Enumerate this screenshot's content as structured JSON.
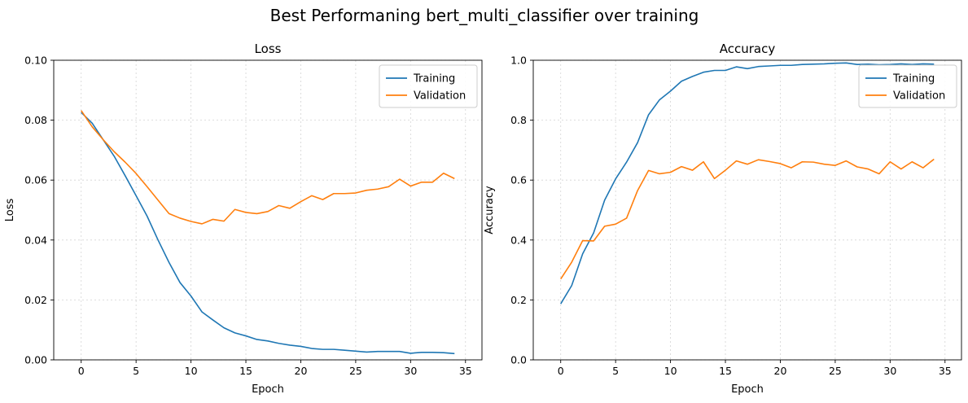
{
  "figure": {
    "suptitle": "Best Performaning bert_multi_classifier over training"
  },
  "chart_data": [
    {
      "type": "line",
      "title": "Loss",
      "xlabel": "Epoch",
      "ylabel": "Loss",
      "xlim": [
        -2.5,
        36.5
      ],
      "ylim": [
        0.0,
        0.1
      ],
      "xticks": [
        0,
        5,
        10,
        15,
        20,
        25,
        30,
        35
      ],
      "yticks": [
        0.0,
        0.02,
        0.04,
        0.06,
        0.08,
        0.1
      ],
      "yticklabels": [
        "0.00",
        "0.02",
        "0.04",
        "0.06",
        "0.08",
        "0.10"
      ],
      "grid": true,
      "legend": "top-right",
      "x": [
        0,
        1,
        2,
        3,
        4,
        5,
        6,
        7,
        8,
        9,
        10,
        11,
        12,
        13,
        14,
        15,
        16,
        17,
        18,
        19,
        20,
        21,
        22,
        23,
        24,
        25,
        26,
        27,
        28,
        29,
        30,
        31,
        32,
        33,
        34
      ],
      "series": [
        {
          "name": "Training",
          "color": "#1f77b4",
          "values": [
            0.0826,
            0.079,
            0.0735,
            0.068,
            0.0615,
            0.0548,
            0.048,
            0.04,
            0.0325,
            0.0258,
            0.0213,
            0.016,
            0.0133,
            0.0107,
            0.009,
            0.008,
            0.0068,
            0.0063,
            0.0055,
            0.0049,
            0.0045,
            0.0038,
            0.0035,
            0.0035,
            0.0032,
            0.0029,
            0.0026,
            0.0028,
            0.0028,
            0.0028,
            0.0022,
            0.0025,
            0.0025,
            0.0024,
            0.0021
          ]
        },
        {
          "name": "Validation",
          "color": "#ff7f0e",
          "values": [
            0.0832,
            0.0778,
            0.0735,
            0.0695,
            0.066,
            0.0622,
            0.0578,
            0.0533,
            0.0488,
            0.0473,
            0.0462,
            0.0454,
            0.0469,
            0.0463,
            0.0502,
            0.0492,
            0.0488,
            0.0495,
            0.0515,
            0.0506,
            0.0528,
            0.0548,
            0.0535,
            0.0555,
            0.0555,
            0.0557,
            0.0566,
            0.057,
            0.0578,
            0.0603,
            0.058,
            0.0593,
            0.0593,
            0.0623,
            0.0605
          ]
        }
      ]
    },
    {
      "type": "line",
      "title": "Accuracy",
      "xlabel": "Epoch",
      "ylabel": "Accuracy",
      "xlim": [
        -2.5,
        36.5
      ],
      "ylim": [
        0.0,
        1.0
      ],
      "xticks": [
        0,
        5,
        10,
        15,
        20,
        25,
        30,
        35
      ],
      "yticks": [
        0.0,
        0.2,
        0.4,
        0.6,
        0.8,
        1.0
      ],
      "yticklabels": [
        "0.0",
        "0.2",
        "0.4",
        "0.6",
        "0.8",
        "1.0"
      ],
      "grid": true,
      "legend": "top-right",
      "x": [
        0,
        1,
        2,
        3,
        4,
        5,
        6,
        7,
        8,
        9,
        10,
        11,
        12,
        13,
        14,
        15,
        16,
        17,
        18,
        19,
        20,
        21,
        22,
        23,
        24,
        25,
        26,
        27,
        28,
        29,
        30,
        31,
        32,
        33,
        34
      ],
      "series": [
        {
          "name": "Training",
          "color": "#1f77b4",
          "values": [
            0.187,
            0.248,
            0.354,
            0.424,
            0.533,
            0.604,
            0.66,
            0.725,
            0.818,
            0.868,
            0.897,
            0.93,
            0.946,
            0.96,
            0.966,
            0.966,
            0.978,
            0.972,
            0.979,
            0.981,
            0.983,
            0.983,
            0.986,
            0.987,
            0.988,
            0.99,
            0.991,
            0.986,
            0.987,
            0.985,
            0.986,
            0.988,
            0.986,
            0.988,
            0.987
          ]
        },
        {
          "name": "Validation",
          "color": "#ff7f0e",
          "values": [
            0.27,
            0.326,
            0.398,
            0.397,
            0.446,
            0.453,
            0.473,
            0.565,
            0.632,
            0.621,
            0.626,
            0.645,
            0.633,
            0.661,
            0.605,
            0.633,
            0.664,
            0.653,
            0.668,
            0.662,
            0.655,
            0.641,
            0.661,
            0.66,
            0.653,
            0.649,
            0.664,
            0.644,
            0.637,
            0.621,
            0.661,
            0.637,
            0.661,
            0.641,
            0.67
          ]
        }
      ]
    }
  ]
}
